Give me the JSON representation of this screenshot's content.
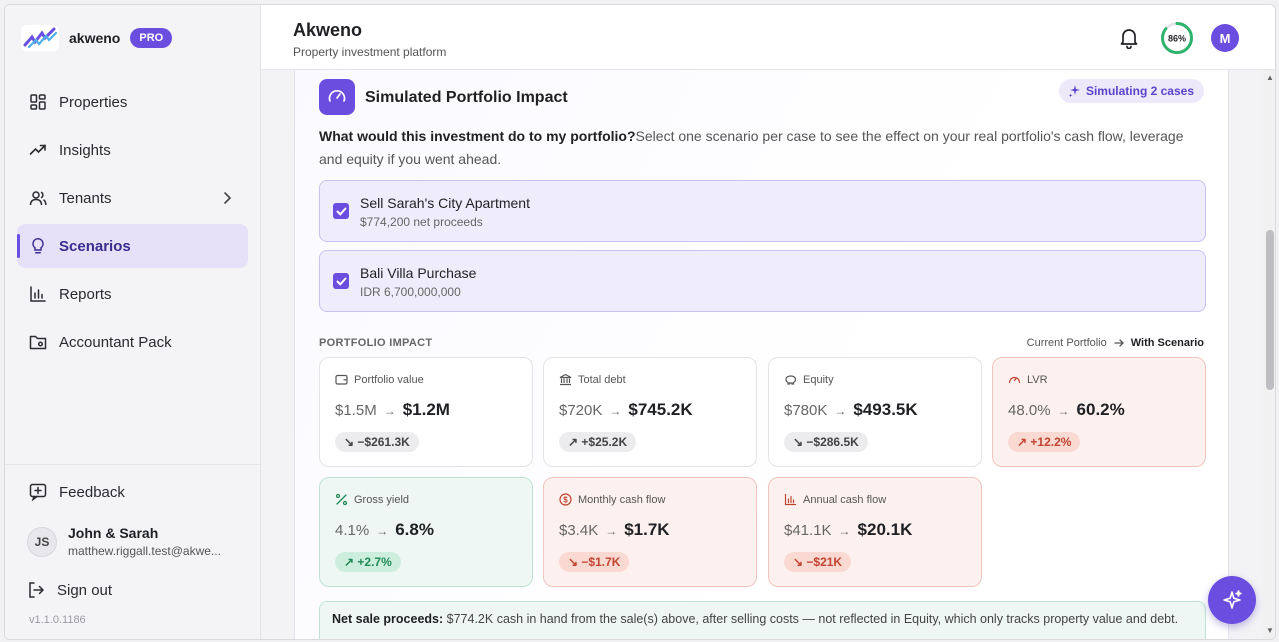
{
  "brand": {
    "name": "akweno",
    "badge": "PRO"
  },
  "sidebar": {
    "items": [
      {
        "label": "Properties",
        "icon": "grid-icon"
      },
      {
        "label": "Insights",
        "icon": "trend-icon"
      },
      {
        "label": "Tenants",
        "icon": "users-icon"
      },
      {
        "label": "Scenarios",
        "icon": "lightbulb-icon"
      },
      {
        "label": "Reports",
        "icon": "bar-chart-icon"
      },
      {
        "label": "Accountant Pack",
        "icon": "folder-icon"
      }
    ],
    "feedback": "Feedback",
    "user": {
      "initials": "JS",
      "name": "John & Sarah",
      "email": "matthew.riggall.test@akwe..."
    },
    "signout": "Sign out",
    "version": "v1.1.0.1186"
  },
  "header": {
    "title": "Akweno",
    "subtitle": "Property investment platform",
    "progress": "86%",
    "avatar": "M"
  },
  "section": {
    "title": "Simulated Portfolio Impact",
    "badge": "Simulating 2 cases",
    "intro_bold": "What would this investment do to my portfolio?",
    "intro_rest": "Select one scenario per case to see the effect on your real portfolio's cash flow, leverage and equity if you went ahead.",
    "cases": [
      {
        "name": "Sell Sarah's City Apartment",
        "sub": "$774,200 net proceeds"
      },
      {
        "name": "Bali Villa Purchase",
        "sub": "IDR 6,700,000,000"
      }
    ],
    "impact_label": "PORTFOLIO IMPACT",
    "legend_from": "Current Portfolio",
    "legend_to": "With Scenario",
    "cards": [
      {
        "label": "Portfolio value",
        "from": "$1.5M",
        "to": "$1.2M",
        "delta": "−$261.3K",
        "dir": "↘"
      },
      {
        "label": "Total debt",
        "from": "$720K",
        "to": "$745.2K",
        "delta": "+$25.2K",
        "dir": "↗"
      },
      {
        "label": "Equity",
        "from": "$780K",
        "to": "$493.5K",
        "delta": "−$286.5K",
        "dir": "↘"
      },
      {
        "label": "LVR",
        "from": "48.0%",
        "to": "60.2%",
        "delta": "+12.2%",
        "dir": "↗"
      },
      {
        "label": "Gross yield",
        "from": "4.1%",
        "to": "6.8%",
        "delta": "+2.7%",
        "dir": "↗"
      },
      {
        "label": "Monthly cash flow",
        "from": "$3.4K",
        "to": "$1.7K",
        "delta": "−$1.7K",
        "dir": "↘"
      },
      {
        "label": "Annual cash flow",
        "from": "$41.1K",
        "to": "$20.1K",
        "delta": "−$21K",
        "dir": "↘"
      }
    ],
    "net_note_bold": "Net sale proceeds:",
    "net_note_rest": " $774.2K cash in hand from the sale(s) above, after selling costs — not reflected in Equity, which only tracks property value and debt."
  },
  "colors": {
    "accent": "#6a4ee0",
    "negative": "#c0442f",
    "positive": "#218a57"
  }
}
